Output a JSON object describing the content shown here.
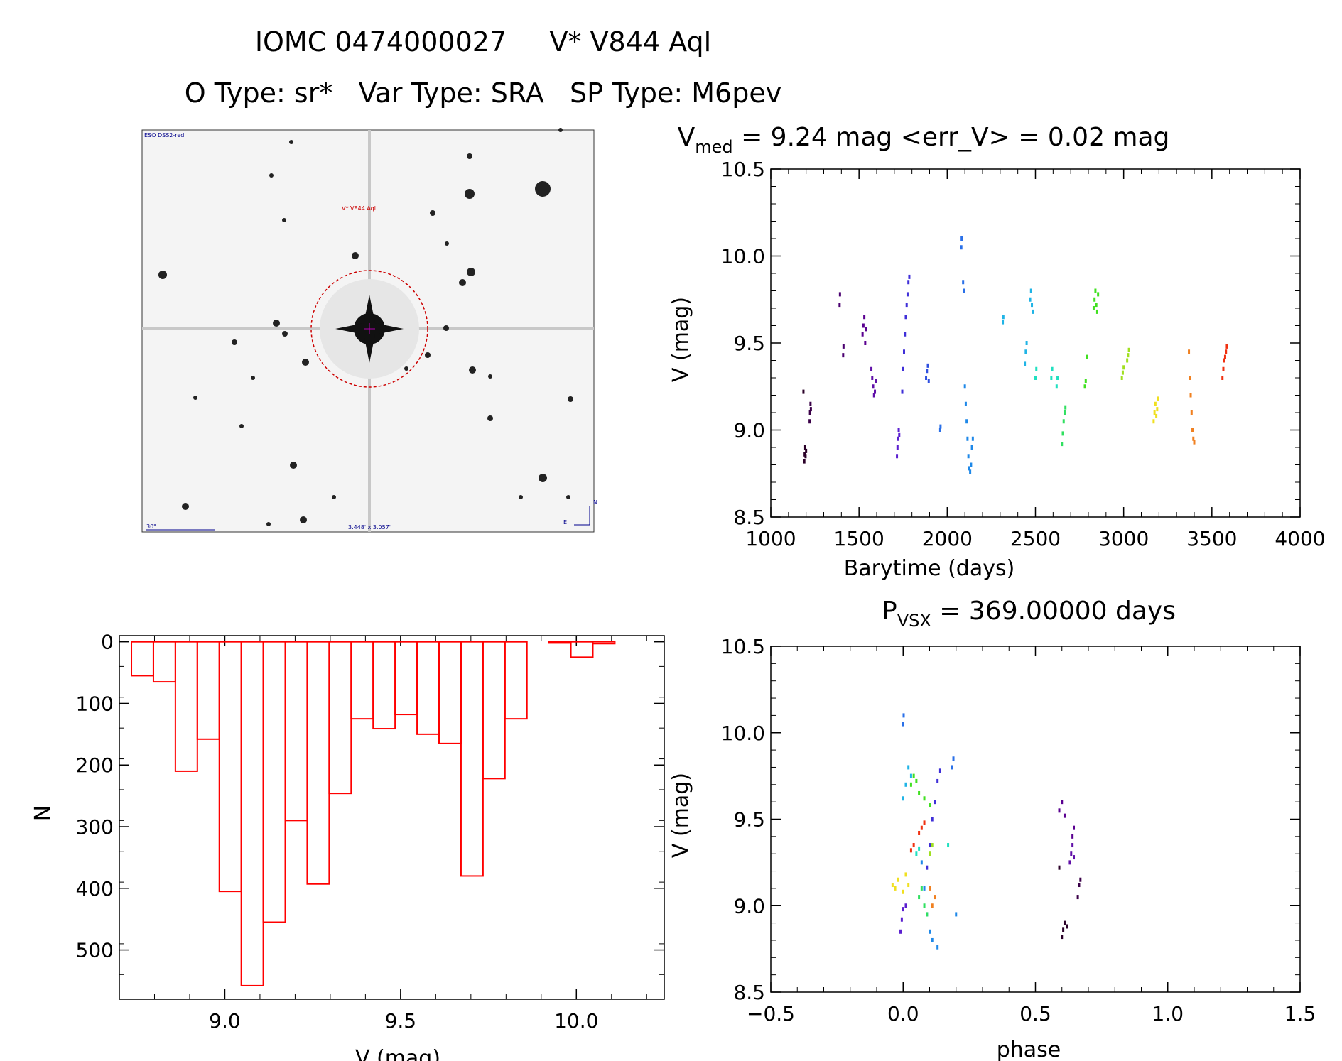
{
  "header": {
    "title": "IOMC 0474000027     V* V844 Aql",
    "subtitle": "O Type: sr*   Var Type: SRA   SP Type: M6pev"
  },
  "finder_chart": {
    "survey_label": "ESO DSS2-red",
    "target_label": "V* V844 Aql",
    "scale_label": "30\"",
    "fov_label": "3.448' x 3.057'",
    "north_label": "N",
    "east_label": "E"
  },
  "chart_data": [
    {
      "id": "light_curve",
      "type": "scatter",
      "title_prefix": "V",
      "title_sub": "med",
      "title_rest": " = 9.24 mag <err_V> = 0.02 mag",
      "xlabel": "Barytime (days)",
      "ylabel": "V (mag)",
      "xlim": [
        1000,
        4000
      ],
      "ylim": [
        10.5,
        8.5
      ],
      "y_inverted": true,
      "xticks": [
        "1000",
        "1500",
        "2000",
        "2500",
        "3000",
        "3500",
        "4000"
      ],
      "yticks": [
        "8.5",
        "9.0",
        "9.5",
        "10.0",
        "10.5"
      ],
      "series": [
        {
          "color": "#2a0028",
          "points": [
            [
              1190,
              8.82
            ],
            [
              1192,
              8.86
            ],
            [
              1195,
              8.9
            ],
            [
              1197,
              8.85
            ],
            [
              1200,
              8.88
            ],
            [
              1185,
              9.22
            ]
          ]
        },
        {
          "color": "#3a0048",
          "points": [
            [
              1220,
              9.05
            ],
            [
              1222,
              9.1
            ],
            [
              1225,
              9.15
            ],
            [
              1227,
              9.12
            ]
          ]
        },
        {
          "color": "#4a0070",
          "points": [
            [
              1390,
              9.72
            ],
            [
              1392,
              9.78
            ],
            [
              1410,
              9.43
            ],
            [
              1412,
              9.48
            ]
          ]
        },
        {
          "color": "#5a0090",
          "points": [
            [
              1520,
              9.55
            ],
            [
              1525,
              9.6
            ],
            [
              1530,
              9.65
            ],
            [
              1535,
              9.5
            ],
            [
              1540,
              9.58
            ]
          ]
        },
        {
          "color": "#6010a8",
          "points": [
            [
              1570,
              9.35
            ],
            [
              1575,
              9.3
            ],
            [
              1580,
              9.25
            ],
            [
              1585,
              9.2
            ],
            [
              1590,
              9.22
            ],
            [
              1595,
              9.28
            ]
          ]
        },
        {
          "color": "#5b1fd0",
          "points": [
            [
              1715,
              8.85
            ],
            [
              1718,
              8.9
            ],
            [
              1722,
              8.95
            ],
            [
              1725,
              9.0
            ],
            [
              1728,
              8.97
            ]
          ]
        },
        {
          "color": "#3f2fd8",
          "points": [
            [
              1745,
              9.22
            ],
            [
              1750,
              9.35
            ],
            [
              1755,
              9.45
            ],
            [
              1760,
              9.55
            ],
            [
              1765,
              9.65
            ],
            [
              1770,
              9.72
            ],
            [
              1775,
              9.78
            ],
            [
              1780,
              9.85
            ],
            [
              1785,
              9.88
            ]
          ]
        },
        {
          "color": "#2f50e0",
          "points": [
            [
              1880,
              9.3
            ],
            [
              1885,
              9.34
            ],
            [
              1890,
              9.37
            ],
            [
              1895,
              9.28
            ]
          ]
        },
        {
          "color": "#2a70e8",
          "points": [
            [
              1960,
              9.0
            ],
            [
              1962,
              9.02
            ],
            [
              2080,
              10.05
            ],
            [
              2082,
              10.1
            ],
            [
              2090,
              9.85
            ],
            [
              2095,
              9.8
            ]
          ]
        },
        {
          "color": "#1e88e8",
          "points": [
            [
              2100,
              9.25
            ],
            [
              2105,
              9.15
            ],
            [
              2110,
              9.05
            ],
            [
              2115,
              8.95
            ],
            [
              2120,
              8.85
            ],
            [
              2125,
              8.78
            ],
            [
              2130,
              8.76
            ],
            [
              2135,
              8.8
            ],
            [
              2140,
              8.9
            ],
            [
              2145,
              8.95
            ]
          ]
        },
        {
          "color": "#20b4e6",
          "points": [
            [
              2315,
              9.62
            ],
            [
              2318,
              9.65
            ],
            [
              2440,
              9.38
            ],
            [
              2445,
              9.45
            ],
            [
              2450,
              9.5
            ],
            [
              2470,
              9.75
            ],
            [
              2475,
              9.8
            ],
            [
              2480,
              9.72
            ],
            [
              2485,
              9.68
            ]
          ]
        },
        {
          "color": "#20e0c0",
          "points": [
            [
              2500,
              9.3
            ],
            [
              2505,
              9.35
            ],
            [
              2590,
              9.3
            ],
            [
              2595,
              9.35
            ],
            [
              2620,
              9.25
            ],
            [
              2625,
              9.3
            ]
          ]
        },
        {
          "color": "#30e060",
          "points": [
            [
              2650,
              8.92
            ],
            [
              2655,
              8.98
            ],
            [
              2660,
              9.05
            ],
            [
              2665,
              9.1
            ],
            [
              2670,
              9.13
            ]
          ]
        },
        {
          "color": "#40e020",
          "points": [
            [
              2780,
              9.25
            ],
            [
              2785,
              9.28
            ],
            [
              2790,
              9.42
            ],
            [
              2830,
              9.7
            ],
            [
              2835,
              9.75
            ],
            [
              2840,
              9.8
            ],
            [
              2845,
              9.72
            ],
            [
              2850,
              9.68
            ],
            [
              2855,
              9.78
            ]
          ]
        },
        {
          "color": "#a0e020",
          "points": [
            [
              2990,
              9.3
            ],
            [
              2995,
              9.33
            ],
            [
              3000,
              9.36
            ],
            [
              3020,
              9.4
            ],
            [
              3025,
              9.43
            ],
            [
              3030,
              9.46
            ]
          ]
        },
        {
          "color": "#f0e020",
          "points": [
            [
              3170,
              9.05
            ],
            [
              3175,
              9.1
            ],
            [
              3180,
              9.15
            ],
            [
              3185,
              9.08
            ],
            [
              3190,
              9.12
            ],
            [
              3195,
              9.18
            ]
          ]
        },
        {
          "color": "#f08020",
          "points": [
            [
              3370,
              9.45
            ],
            [
              3375,
              9.3
            ],
            [
              3380,
              9.2
            ],
            [
              3385,
              9.1
            ],
            [
              3390,
              9.0
            ],
            [
              3395,
              8.95
            ],
            [
              3400,
              8.93
            ]
          ]
        },
        {
          "color": "#f03010",
          "points": [
            [
              3560,
              9.3
            ],
            [
              3565,
              9.35
            ],
            [
              3570,
              9.4
            ],
            [
              3575,
              9.42
            ],
            [
              3580,
              9.45
            ],
            [
              3585,
              9.48
            ]
          ]
        }
      ]
    },
    {
      "id": "histogram",
      "type": "bar",
      "xlabel": "V (mag)",
      "ylabel": "N",
      "xlim": [
        8.7,
        10.25
      ],
      "ylim": [
        -10,
        580
      ],
      "bin_width": 0.0625,
      "xticks": [
        "9.0",
        "9.5",
        "10.0"
      ],
      "yticks": [
        "0",
        "100",
        "200",
        "300",
        "400",
        "500"
      ],
      "bar_color": "#ff0000",
      "bins": [
        [
          8.7344,
          55
        ],
        [
          8.7969,
          65
        ],
        [
          8.8594,
          210
        ],
        [
          8.9219,
          158
        ],
        [
          8.9844,
          405
        ],
        [
          9.0469,
          558
        ],
        [
          9.1094,
          455
        ],
        [
          9.1719,
          290
        ],
        [
          9.2344,
          393
        ],
        [
          9.2969,
          246
        ],
        [
          9.3594,
          125
        ],
        [
          9.4219,
          141
        ],
        [
          9.4844,
          118
        ],
        [
          9.5469,
          150
        ],
        [
          9.6094,
          165
        ],
        [
          9.6719,
          380
        ],
        [
          9.7344,
          222
        ],
        [
          9.7969,
          125
        ],
        [
          9.8594,
          0
        ],
        [
          9.9219,
          2
        ],
        [
          9.9844,
          25
        ],
        [
          10.0469,
          3
        ]
      ]
    },
    {
      "id": "phase_curve",
      "type": "scatter",
      "title_prefix": "P",
      "title_sub": "VSX",
      "title_rest": " = 369.00000 days",
      "xlabel": "phase",
      "ylabel": "V (mag)",
      "xlim": [
        -0.5,
        1.5
      ],
      "ylim": [
        10.5,
        8.5
      ],
      "y_inverted": true,
      "xticks": [
        "−0.5",
        "0.0",
        "0.5",
        "1.0",
        "1.5"
      ],
      "yticks": [
        "8.5",
        "9.0",
        "9.5",
        "10.0",
        "10.5"
      ],
      "series": [
        {
          "color": "#2a0028",
          "points": [
            [
              0.6,
              8.82
            ],
            [
              0.605,
              8.86
            ],
            [
              0.61,
              8.9
            ],
            [
              0.62,
              8.88
            ],
            [
              0.59,
              9.22
            ]
          ]
        },
        {
          "color": "#3a0048",
          "points": [
            [
              0.66,
              9.05
            ],
            [
              0.665,
              9.12
            ],
            [
              0.67,
              9.15
            ]
          ]
        },
        {
          "color": "#5a0090",
          "points": [
            [
              0.59,
              9.55
            ],
            [
              0.6,
              9.6
            ],
            [
              0.61,
              9.52
            ],
            [
              0.64,
              9.4
            ],
            [
              0.645,
              9.45
            ]
          ]
        },
        {
          "color": "#6010a8",
          "points": [
            [
              0.63,
              9.25
            ],
            [
              0.635,
              9.3
            ],
            [
              0.64,
              9.35
            ],
            [
              0.645,
              9.28
            ]
          ]
        },
        {
          "color": "#5b1fd0",
          "points": [
            [
              -0.01,
              8.85
            ],
            [
              -0.005,
              8.92
            ],
            [
              0.0,
              8.98
            ],
            [
              0.01,
              9.0
            ]
          ]
        },
        {
          "color": "#3f2fd8",
          "points": [
            [
              0.09,
              9.22
            ],
            [
              0.1,
              9.35
            ],
            [
              0.11,
              9.5
            ],
            [
              0.12,
              9.6
            ],
            [
              0.13,
              9.72
            ],
            [
              0.14,
              9.78
            ]
          ]
        },
        {
          "color": "#2a70e8",
          "points": [
            [
              0.0,
              10.05
            ],
            [
              0.002,
              10.1
            ],
            [
              0.19,
              9.85
            ],
            [
              0.185,
              9.8
            ]
          ]
        },
        {
          "color": "#1e88e8",
          "points": [
            [
              0.07,
              9.25
            ],
            [
              0.08,
              9.1
            ],
            [
              0.09,
              8.95
            ],
            [
              0.1,
              8.85
            ],
            [
              0.11,
              8.8
            ],
            [
              0.13,
              8.76
            ],
            [
              0.2,
              8.95
            ]
          ]
        },
        {
          "color": "#20b4e6",
          "points": [
            [
              0.0,
              9.62
            ],
            [
              0.01,
              9.7
            ],
            [
              0.02,
              9.8
            ],
            [
              0.03,
              9.75
            ]
          ]
        },
        {
          "color": "#20e0c0",
          "points": [
            [
              0.05,
              9.3
            ],
            [
              0.06,
              9.33
            ],
            [
              0.17,
              9.35
            ]
          ]
        },
        {
          "color": "#30e060",
          "points": [
            [
              0.06,
              9.05
            ],
            [
              0.07,
              9.1
            ],
            [
              0.08,
              9.0
            ],
            [
              0.09,
              8.95
            ]
          ]
        },
        {
          "color": "#40e020",
          "points": [
            [
              0.03,
              9.7
            ],
            [
              0.04,
              9.75
            ],
            [
              0.05,
              9.72
            ],
            [
              0.06,
              9.65
            ],
            [
              0.08,
              9.62
            ],
            [
              0.1,
              9.58
            ]
          ]
        },
        {
          "color": "#a0e020",
          "points": [
            [
              0.1,
              9.3
            ],
            [
              0.11,
              9.35
            ]
          ]
        },
        {
          "color": "#f0e020",
          "points": [
            [
              -0.04,
              9.12
            ],
            [
              -0.03,
              9.1
            ],
            [
              -0.02,
              9.15
            ],
            [
              0.0,
              9.08
            ],
            [
              0.01,
              9.18
            ],
            [
              0.02,
              9.12
            ]
          ]
        },
        {
          "color": "#f08020",
          "points": [
            [
              0.1,
              9.1
            ],
            [
              0.11,
              9.0
            ],
            [
              0.12,
              9.05
            ]
          ]
        },
        {
          "color": "#f03010",
          "points": [
            [
              0.03,
              9.32
            ],
            [
              0.04,
              9.35
            ],
            [
              0.06,
              9.42
            ],
            [
              0.07,
              9.45
            ],
            [
              0.08,
              9.48
            ]
          ]
        }
      ]
    }
  ]
}
